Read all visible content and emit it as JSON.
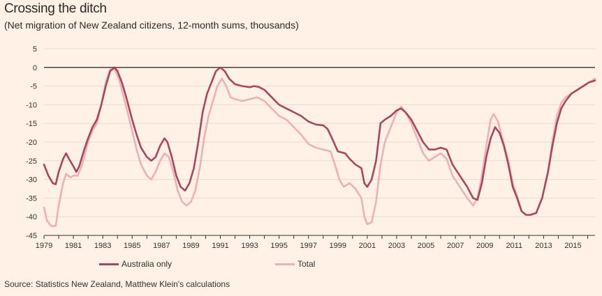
{
  "title": "Crossing the ditch",
  "subtitle": "(Net migration of New Zealand citizens, 12-month sums, thousands)",
  "source": "Source: Statistics New Zealand, Matthew Klein's calculations",
  "colors": {
    "background": "#fff1e5",
    "australia": "#a8465f",
    "total": "#ecb1b6",
    "zero_line": "#33302e",
    "grid": "#e9dccf"
  },
  "chart_data": {
    "type": "line",
    "title": "Crossing the ditch",
    "subtitle": "(Net migration of New Zealand citizens, 12-month sums, thousands)",
    "xlabel": "",
    "ylabel": "",
    "xlim": [
      1979,
      2016.5
    ],
    "ylim": [
      -45,
      5
    ],
    "y_ticks": [
      5,
      0,
      -5,
      -10,
      -15,
      -20,
      -25,
      -30,
      -35,
      -40,
      -45
    ],
    "x_ticks": [
      1979,
      1981,
      1983,
      1985,
      1987,
      1989,
      1991,
      1993,
      1995,
      1997,
      1999,
      2001,
      2003,
      2005,
      2007,
      2009,
      2011,
      2013,
      2015
    ],
    "legend_position": "bottom",
    "series": [
      {
        "name": "Australia only",
        "points": [
          [
            1979.0,
            -26
          ],
          [
            1979.3,
            -29
          ],
          [
            1979.6,
            -31
          ],
          [
            1979.8,
            -31.3
          ],
          [
            1980.0,
            -28
          ],
          [
            1980.3,
            -24.5
          ],
          [
            1980.5,
            -23
          ],
          [
            1980.7,
            -24.5
          ],
          [
            1981.0,
            -26.5
          ],
          [
            1981.2,
            -28
          ],
          [
            1981.4,
            -26.5
          ],
          [
            1981.7,
            -22.5
          ],
          [
            1982.0,
            -19
          ],
          [
            1982.3,
            -16
          ],
          [
            1982.6,
            -14
          ],
          [
            1982.9,
            -10
          ],
          [
            1983.2,
            -5
          ],
          [
            1983.5,
            -1
          ],
          [
            1983.8,
            0
          ],
          [
            1984.0,
            -1
          ],
          [
            1984.3,
            -4
          ],
          [
            1984.6,
            -8
          ],
          [
            1985.0,
            -14
          ],
          [
            1985.3,
            -18
          ],
          [
            1985.6,
            -21.5
          ],
          [
            1986.0,
            -24
          ],
          [
            1986.3,
            -25
          ],
          [
            1986.6,
            -24
          ],
          [
            1986.9,
            -21
          ],
          [
            1987.2,
            -19
          ],
          [
            1987.4,
            -20
          ],
          [
            1987.7,
            -24
          ],
          [
            1988.0,
            -29
          ],
          [
            1988.3,
            -32
          ],
          [
            1988.6,
            -33
          ],
          [
            1988.9,
            -31
          ],
          [
            1989.2,
            -27
          ],
          [
            1989.5,
            -20
          ],
          [
            1989.8,
            -12
          ],
          [
            1990.1,
            -7
          ],
          [
            1990.4,
            -4
          ],
          [
            1990.7,
            -1
          ],
          [
            1991.0,
            0
          ],
          [
            1991.3,
            -1
          ],
          [
            1991.6,
            -3
          ],
          [
            1992.0,
            -4.5
          ],
          [
            1992.5,
            -5
          ],
          [
            1993.0,
            -5.3
          ],
          [
            1993.3,
            -5
          ],
          [
            1993.6,
            -5.2
          ],
          [
            1994.0,
            -6
          ],
          [
            1994.5,
            -8
          ],
          [
            1995.0,
            -10
          ],
          [
            1995.5,
            -11
          ],
          [
            1996.0,
            -12
          ],
          [
            1996.5,
            -13
          ],
          [
            1997.0,
            -14.5
          ],
          [
            1997.5,
            -15.3
          ],
          [
            1998.0,
            -15.5
          ],
          [
            1998.3,
            -16.5
          ],
          [
            1998.6,
            -19
          ],
          [
            1999.0,
            -22.5
          ],
          [
            1999.5,
            -23
          ],
          [
            1999.8,
            -24.5
          ],
          [
            2000.2,
            -26
          ],
          [
            2000.6,
            -27
          ],
          [
            2000.8,
            -31
          ],
          [
            2001.0,
            -32
          ],
          [
            2001.3,
            -30
          ],
          [
            2001.6,
            -25
          ],
          [
            2001.9,
            -15
          ],
          [
            2002.2,
            -14
          ],
          [
            2002.6,
            -13
          ],
          [
            2003.0,
            -11.5
          ],
          [
            2003.3,
            -11
          ],
          [
            2003.6,
            -12
          ],
          [
            2004.0,
            -14
          ],
          [
            2004.4,
            -17
          ],
          [
            2004.8,
            -20
          ],
          [
            2005.2,
            -22
          ],
          [
            2005.6,
            -22
          ],
          [
            2006.0,
            -21.5
          ],
          [
            2006.4,
            -22
          ],
          [
            2006.8,
            -26
          ],
          [
            2007.3,
            -29
          ],
          [
            2007.8,
            -32
          ],
          [
            2008.2,
            -35
          ],
          [
            2008.5,
            -35.5
          ],
          [
            2008.8,
            -31
          ],
          [
            2009.1,
            -24
          ],
          [
            2009.4,
            -19
          ],
          [
            2009.7,
            -16
          ],
          [
            2010.0,
            -17.5
          ],
          [
            2010.3,
            -21
          ],
          [
            2010.6,
            -26
          ],
          [
            2010.9,
            -32
          ],
          [
            2011.2,
            -35
          ],
          [
            2011.5,
            -38.5
          ],
          [
            2011.8,
            -39.5
          ],
          [
            2012.1,
            -39.5
          ],
          [
            2012.5,
            -39
          ],
          [
            2012.9,
            -35
          ],
          [
            2013.3,
            -28
          ],
          [
            2013.6,
            -21
          ],
          [
            2013.9,
            -15
          ],
          [
            2014.2,
            -11
          ],
          [
            2014.5,
            -9
          ],
          [
            2014.9,
            -7
          ],
          [
            2015.3,
            -6
          ],
          [
            2015.7,
            -5
          ],
          [
            2016.1,
            -4
          ],
          [
            2016.5,
            -3.5
          ]
        ]
      },
      {
        "name": "Total",
        "points": [
          [
            1979.0,
            -37.5
          ],
          [
            1979.2,
            -41
          ],
          [
            1979.5,
            -42.5
          ],
          [
            1979.8,
            -42.5
          ],
          [
            1980.0,
            -37
          ],
          [
            1980.3,
            -31
          ],
          [
            1980.5,
            -28.5
          ],
          [
            1980.8,
            -29.5
          ],
          [
            1981.0,
            -29
          ],
          [
            1981.3,
            -29
          ],
          [
            1981.6,
            -26
          ],
          [
            1982.0,
            -20
          ],
          [
            1982.3,
            -17
          ],
          [
            1982.6,
            -15
          ],
          [
            1982.9,
            -10
          ],
          [
            1983.2,
            -4
          ],
          [
            1983.5,
            -0.5
          ],
          [
            1983.8,
            -0.5
          ],
          [
            1984.1,
            -3
          ],
          [
            1984.5,
            -9
          ],
          [
            1985.0,
            -17
          ],
          [
            1985.3,
            -22
          ],
          [
            1985.6,
            -26
          ],
          [
            1986.0,
            -29
          ],
          [
            1986.3,
            -30
          ],
          [
            1986.6,
            -28
          ],
          [
            1986.9,
            -25
          ],
          [
            1987.2,
            -23
          ],
          [
            1987.5,
            -24
          ],
          [
            1987.8,
            -28
          ],
          [
            1988.1,
            -33
          ],
          [
            1988.4,
            -36
          ],
          [
            1988.7,
            -37
          ],
          [
            1989.0,
            -36
          ],
          [
            1989.3,
            -33
          ],
          [
            1989.6,
            -27
          ],
          [
            1989.9,
            -19
          ],
          [
            1990.2,
            -13
          ],
          [
            1990.5,
            -9
          ],
          [
            1990.8,
            -5
          ],
          [
            1991.1,
            -3
          ],
          [
            1991.4,
            -5
          ],
          [
            1991.7,
            -8
          ],
          [
            1992.0,
            -8.5
          ],
          [
            1992.5,
            -9
          ],
          [
            1993.0,
            -8.5
          ],
          [
            1993.5,
            -8
          ],
          [
            1994.0,
            -9
          ],
          [
            1994.5,
            -11
          ],
          [
            1995.0,
            -13
          ],
          [
            1995.5,
            -14
          ],
          [
            1996.0,
            -16
          ],
          [
            1996.5,
            -18
          ],
          [
            1997.0,
            -20.5
          ],
          [
            1997.5,
            -21.5
          ],
          [
            1998.0,
            -22
          ],
          [
            1998.5,
            -22.5
          ],
          [
            1998.8,
            -26
          ],
          [
            1999.1,
            -30
          ],
          [
            1999.4,
            -32
          ],
          [
            1999.8,
            -31
          ],
          [
            2000.2,
            -32.5
          ],
          [
            2000.6,
            -35
          ],
          [
            2000.8,
            -40
          ],
          [
            2001.0,
            -42
          ],
          [
            2001.3,
            -41.5
          ],
          [
            2001.6,
            -36
          ],
          [
            2001.9,
            -26
          ],
          [
            2002.2,
            -20
          ],
          [
            2002.6,
            -16
          ],
          [
            2003.0,
            -12
          ],
          [
            2003.3,
            -10.5
          ],
          [
            2003.6,
            -12
          ],
          [
            2004.0,
            -15
          ],
          [
            2004.4,
            -19
          ],
          [
            2004.8,
            -23
          ],
          [
            2005.2,
            -25
          ],
          [
            2005.6,
            -24
          ],
          [
            2006.0,
            -23
          ],
          [
            2006.4,
            -24.5
          ],
          [
            2006.8,
            -29
          ],
          [
            2007.3,
            -32
          ],
          [
            2007.8,
            -35
          ],
          [
            2008.2,
            -37
          ],
          [
            2008.5,
            -35
          ],
          [
            2008.8,
            -29
          ],
          [
            2009.1,
            -21
          ],
          [
            2009.4,
            -14
          ],
          [
            2009.6,
            -12.5
          ],
          [
            2009.9,
            -14.5
          ],
          [
            2010.2,
            -19
          ],
          [
            2010.6,
            -25
          ],
          [
            2010.9,
            -31
          ],
          [
            2011.2,
            -34.5
          ],
          [
            2011.5,
            -38.5
          ],
          [
            2011.8,
            -39.5
          ],
          [
            2012.1,
            -39.5
          ],
          [
            2012.5,
            -39
          ],
          [
            2012.9,
            -35
          ],
          [
            2013.3,
            -28
          ],
          [
            2013.6,
            -20
          ],
          [
            2013.9,
            -13
          ],
          [
            2014.2,
            -9.5
          ],
          [
            2014.5,
            -8
          ],
          [
            2014.9,
            -7
          ],
          [
            2015.3,
            -6
          ],
          [
            2015.7,
            -5
          ],
          [
            2016.1,
            -4
          ],
          [
            2016.5,
            -3
          ]
        ]
      }
    ]
  }
}
